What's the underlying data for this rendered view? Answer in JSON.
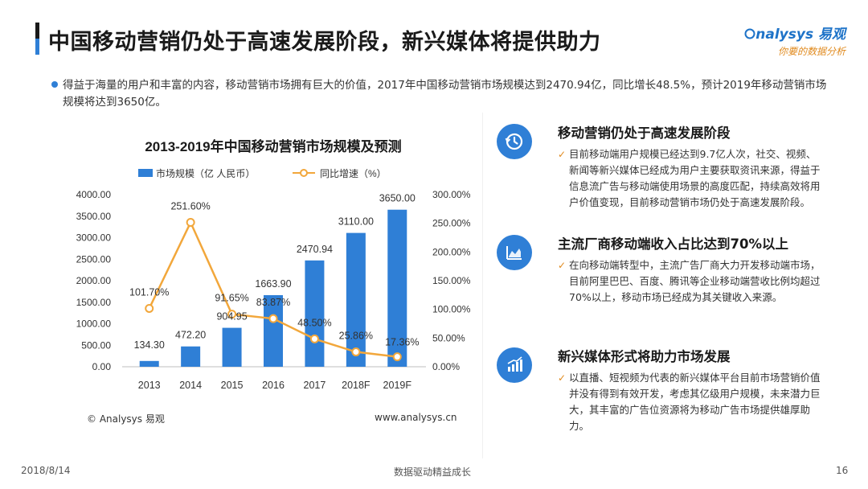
{
  "title": "中国移动营销仍处于高速发展阶段，新兴媒体将提供助力",
  "brand": {
    "name": "nalysys 易观",
    "tagline": "你要的数据分析"
  },
  "intro": "得益于海量的用户和丰富的内容，移动营销市场拥有巨大的价值，2017年中国移动营销市场规模达到2470.94亿，同比增长48.5%，预计2019年移动营销市场规模将达到3650亿。",
  "chart_data": {
    "type": "bar",
    "title": "2013-2019年中国移动营销市场规模及预测",
    "categories": [
      "2013",
      "2014",
      "2015",
      "2016",
      "2017",
      "2018F",
      "2019F"
    ],
    "series": [
      {
        "name": "市场规模（亿 人民币）",
        "type": "bar",
        "axis": "left",
        "color": "#2f7fd6",
        "values": [
          134.3,
          472.2,
          904.95,
          1663.9,
          2470.94,
          3110.0,
          3650.0
        ],
        "labels": [
          "134.30",
          "472.20",
          "904.95",
          "1663.90",
          "2470.94",
          "3110.00",
          "3650.00"
        ]
      },
      {
        "name": "同比增速（%）",
        "type": "line",
        "axis": "right",
        "color": "#f2a73b",
        "values": [
          101.7,
          251.6,
          91.65,
          83.87,
          48.5,
          25.86,
          17.36
        ],
        "labels": [
          "101.70%",
          "251.60%",
          "91.65%",
          "83.87%",
          "48.50%",
          "25.86%",
          "17.36%"
        ]
      }
    ],
    "y_left": {
      "min": 0,
      "max": 4000,
      "ticks": [
        "0.00",
        "500.00",
        "1000.00",
        "1500.00",
        "2000.00",
        "2500.00",
        "3000.00",
        "3500.00",
        "4000.00"
      ]
    },
    "y_right": {
      "min": 0,
      "max": 300,
      "ticks": [
        "0.00%",
        "50.00%",
        "100.00%",
        "150.00%",
        "200.00%",
        "250.00%",
        "300.00%"
      ]
    },
    "legend_position": "top",
    "source": "© Analysys 易观",
    "website": "www.analysys.cn"
  },
  "sections": [
    {
      "icon": "clock-icon",
      "title": "移动营销仍处于高速发展阶段",
      "body": "目前移动端用户规模已经达到9.7亿人次，社交、视频、新闻等新兴媒体已经成为用户主要获取资讯来源，得益于信息流广告与移动端使用场景的高度匹配，持续高效将用户价值变现，目前移动营销市场仍处于高速发展阶段。"
    },
    {
      "icon": "area-chart-icon",
      "title": "主流厂商移动端收入占比达到70%以上",
      "body": "在向移动端转型中，主流广告厂商大力开发移动端市场，目前阿里巴巴、百度、腾讯等企业移动端营收比例均超过70%以上，移动市场已经成为其关键收入来源。"
    },
    {
      "icon": "bar-chart-icon",
      "title": "新兴媒体形式将助力市场发展",
      "body": "以直播、短视频为代表的新兴媒体平台目前市场营销价值并没有得到有效开发，考虑其亿级用户规模，未来潜力巨大，其丰富的广告位资源将为移动广告市场提供雄厚助力。"
    }
  ],
  "footer": {
    "date": "2018/8/14",
    "slogan": "数据驱动精益成长",
    "page": "16"
  }
}
